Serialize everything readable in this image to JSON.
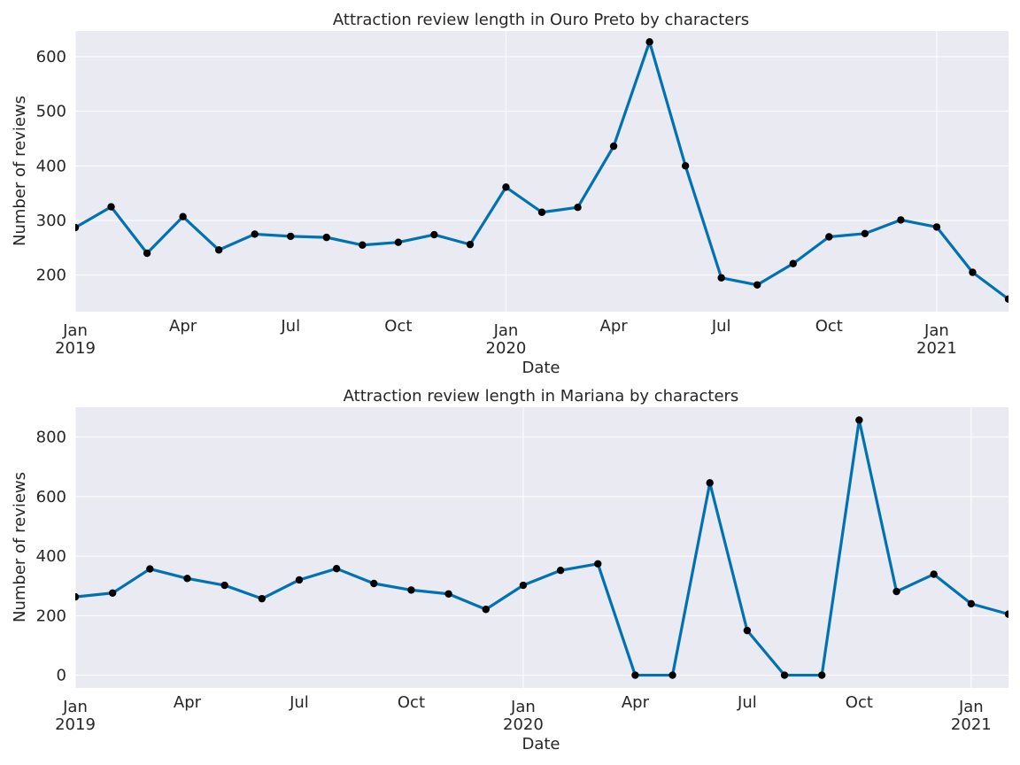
{
  "chart_data": [
    {
      "type": "line",
      "title": "Attraction review length in Ouro Preto by characters",
      "xlabel": "Date",
      "ylabel": "Number of reviews",
      "x": [
        "2019-01",
        "2019-02",
        "2019-03",
        "2019-04",
        "2019-05",
        "2019-06",
        "2019-07",
        "2019-08",
        "2019-09",
        "2019-10",
        "2019-11",
        "2019-12",
        "2020-01",
        "2020-02",
        "2020-03",
        "2020-04",
        "2020-05",
        "2020-06",
        "2020-07",
        "2020-08",
        "2020-09",
        "2020-10",
        "2020-11",
        "2020-12",
        "2021-01",
        "2021-02",
        "2021-03"
      ],
      "values": [
        287,
        325,
        240,
        307,
        246,
        275,
        271,
        269,
        255,
        260,
        274,
        256,
        361,
        315,
        324,
        436,
        627,
        400,
        195,
        182,
        221,
        270,
        276,
        301,
        288,
        205,
        156
      ],
      "xlim": [
        "2019-01",
        "2021-03"
      ],
      "ylim": [
        133,
        647
      ],
      "yticks": [
        200,
        300,
        400,
        500,
        600
      ],
      "xticks": [
        {
          "date": "2019-01",
          "label": "Jan",
          "year": "2019"
        },
        {
          "date": "2019-04",
          "label": "Apr",
          "year": ""
        },
        {
          "date": "2019-07",
          "label": "Jul",
          "year": ""
        },
        {
          "date": "2019-10",
          "label": "Oct",
          "year": ""
        },
        {
          "date": "2020-01",
          "label": "Jan",
          "year": "2020"
        },
        {
          "date": "2020-04",
          "label": "Apr",
          "year": ""
        },
        {
          "date": "2020-07",
          "label": "Jul",
          "year": ""
        },
        {
          "date": "2020-10",
          "label": "Oct",
          "year": ""
        },
        {
          "date": "2021-01",
          "label": "Jan",
          "year": "2021"
        }
      ],
      "grid": true,
      "line_color": "#0072b2",
      "marker_color": "#000000"
    },
    {
      "type": "line",
      "title": "Attraction review length in Mariana by characters",
      "xlabel": "Date",
      "ylabel": "Number of reviews",
      "x": [
        "2019-01",
        "2019-02",
        "2019-03",
        "2019-04",
        "2019-05",
        "2019-06",
        "2019-07",
        "2019-08",
        "2019-09",
        "2019-10",
        "2019-11",
        "2019-12",
        "2020-01",
        "2020-02",
        "2020-03",
        "2020-04",
        "2020-05",
        "2020-06",
        "2020-07",
        "2020-08",
        "2020-09",
        "2020-10",
        "2020-11",
        "2020-12",
        "2021-01",
        "2021-02"
      ],
      "values": [
        263,
        276,
        357,
        325,
        302,
        257,
        320,
        358,
        308,
        286,
        273,
        221,
        302,
        352,
        374,
        0,
        0,
        646,
        150,
        0,
        0,
        857,
        281,
        339,
        240,
        205
      ],
      "xlim": [
        "2019-01",
        "2021-02"
      ],
      "ylim": [
        -43,
        900
      ],
      "yticks": [
        0,
        200,
        400,
        600,
        800
      ],
      "xticks": [
        {
          "date": "2019-01",
          "label": "Jan",
          "year": "2019"
        },
        {
          "date": "2019-04",
          "label": "Apr",
          "year": ""
        },
        {
          "date": "2019-07",
          "label": "Jul",
          "year": ""
        },
        {
          "date": "2019-10",
          "label": "Oct",
          "year": ""
        },
        {
          "date": "2020-01",
          "label": "Jan",
          "year": "2020"
        },
        {
          "date": "2020-04",
          "label": "Apr",
          "year": ""
        },
        {
          "date": "2020-07",
          "label": "Jul",
          "year": ""
        },
        {
          "date": "2020-10",
          "label": "Oct",
          "year": ""
        },
        {
          "date": "2021-01",
          "label": "Jan",
          "year": "2021"
        }
      ],
      "grid": true,
      "line_color": "#0072b2",
      "marker_color": "#000000"
    }
  ],
  "colors": {
    "plot_background": "#eaeaf2",
    "grid": "#ffffff",
    "line": "#0072b2",
    "marker": "#000000"
  }
}
